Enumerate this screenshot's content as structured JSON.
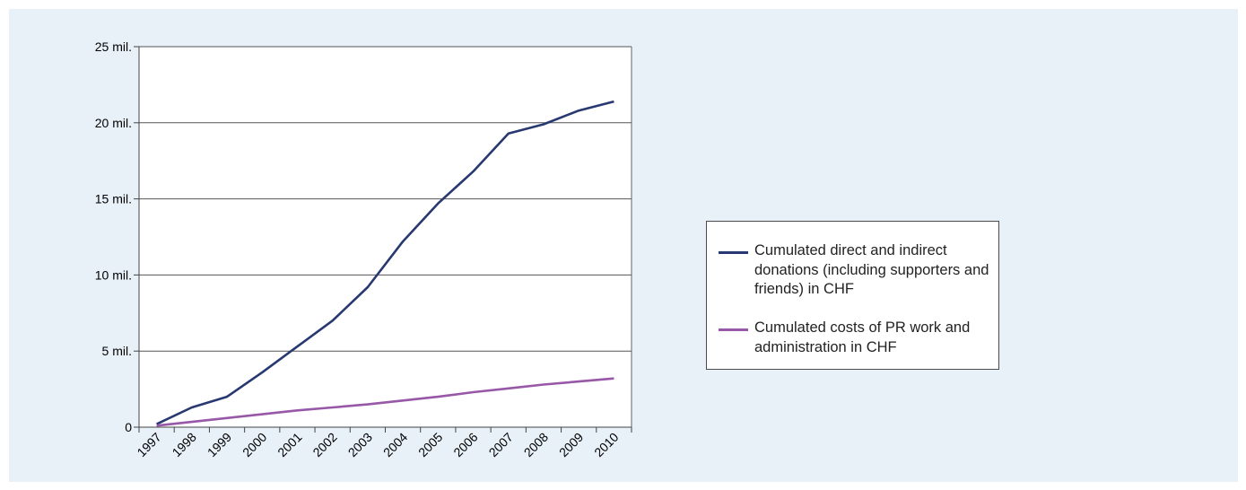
{
  "chart_data": {
    "type": "line",
    "x": [
      "1997",
      "1998",
      "1999",
      "2000",
      "2001",
      "2002",
      "2003",
      "2004",
      "2005",
      "2006",
      "2007",
      "2008",
      "2009",
      "2010"
    ],
    "series": [
      {
        "name": "Cumulated direct and indirect donations (including supporters and friends) in CHF",
        "color": "#283870",
        "values": [
          200000,
          1300000,
          2000000,
          3600000,
          5300000,
          7000000,
          9200000,
          12200000,
          14700000,
          16800000,
          19300000,
          19900000,
          20800000,
          21400000
        ]
      },
      {
        "name": "Cumulated costs of PR work and administration in CHF",
        "color": "#9858a8",
        "values": [
          100000,
          350000,
          600000,
          850000,
          1100000,
          1300000,
          1500000,
          1750000,
          2000000,
          2300000,
          2550000,
          2800000,
          3000000,
          3200000
        ]
      }
    ],
    "ylim": [
      0,
      25000000
    ],
    "yticks": [
      {
        "value": 0,
        "label": "0"
      },
      {
        "value": 5000000,
        "label": "5 mil."
      },
      {
        "value": 10000000,
        "label": "10 mil."
      },
      {
        "value": 15000000,
        "label": "15 mil."
      },
      {
        "value": 20000000,
        "label": "20 mil."
      },
      {
        "value": 25000000,
        "label": "25 mil."
      }
    ],
    "grid": true,
    "legend_position": "right"
  },
  "colors": {
    "panel_background": "#e8f0f8",
    "plot_background": "#ffffff",
    "gridline": "#555555"
  }
}
